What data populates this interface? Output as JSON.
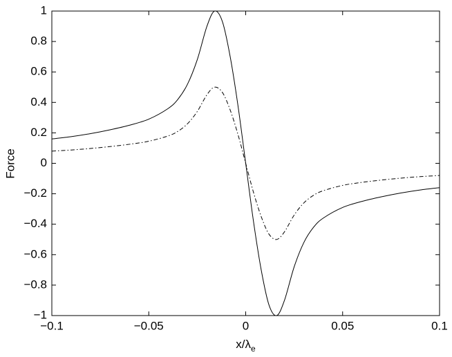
{
  "chart_data": {
    "type": "line",
    "xlabel": "x/λ",
    "xlabel_subscript": "e",
    "ylabel": "Force",
    "x": [
      -0.1,
      -0.09,
      -0.08,
      -0.07,
      -0.06,
      -0.05,
      -0.04,
      -0.035,
      -0.03,
      -0.025,
      -0.02,
      -0.016,
      -0.012,
      -0.008,
      -0.004,
      0,
      0.004,
      0.008,
      0.012,
      0.016,
      0.02,
      0.025,
      0.03,
      0.035,
      0.04,
      0.05,
      0.06,
      0.07,
      0.08,
      0.09,
      0.1
    ],
    "series": [
      {
        "color": "#000000",
        "dash": "solid",
        "values": [
          0.16,
          0.175,
          0.195,
          0.22,
          0.25,
          0.29,
          0.36,
          0.42,
          0.52,
          0.68,
          0.9,
          1,
          0.93,
          0.7,
          0.38,
          0,
          -0.38,
          -0.7,
          -0.93,
          -1,
          -0.9,
          -0.68,
          -0.52,
          -0.42,
          -0.36,
          -0.29,
          -0.25,
          -0.22,
          -0.195,
          -0.175,
          -0.16
        ]
      },
      {
        "color": "#000000",
        "dash": "dashdot",
        "values": [
          0.08,
          0.0875,
          0.0975,
          0.11,
          0.125,
          0.145,
          0.18,
          0.21,
          0.26,
          0.34,
          0.45,
          0.5,
          0.465,
          0.35,
          0.19,
          0,
          -0.19,
          -0.35,
          -0.465,
          -0.5,
          -0.45,
          -0.34,
          -0.26,
          -0.21,
          -0.18,
          -0.145,
          -0.125,
          -0.11,
          -0.0975,
          -0.0875,
          -0.08
        ]
      }
    ],
    "xlim": [
      -0.1,
      0.1
    ],
    "xticks": [
      {
        "value": -0.1,
        "label": "−0.1"
      },
      {
        "value": -0.05,
        "label": "−0.05"
      },
      0,
      0.05,
      0.1
    ],
    "ylim": [
      -1,
      1
    ],
    "yticks": [
      {
        "value": -1,
        "label": "−1"
      },
      {
        "value": -0.8,
        "label": "−0.8"
      },
      {
        "value": -0.6,
        "label": "−0.6"
      },
      {
        "value": -0.4,
        "label": "−0.4"
      },
      {
        "value": -0.2,
        "label": "−0.2"
      },
      0,
      0.2,
      0.4,
      0.6,
      0.8,
      1
    ],
    "grid": false
  }
}
